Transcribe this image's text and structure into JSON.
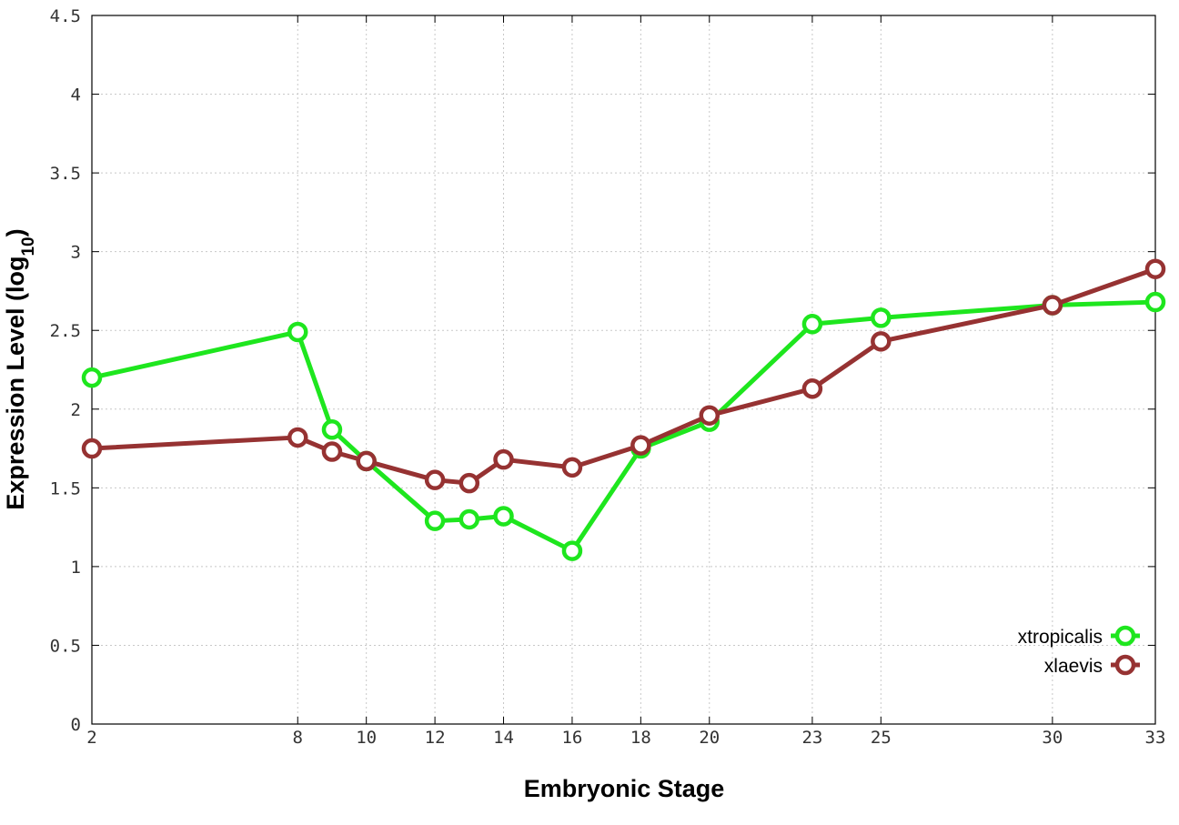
{
  "chart_data": {
    "type": "line",
    "xlabel": "Embryonic Stage",
    "ylabel_main": "Expression Level (log",
    "ylabel_sub": "10",
    "ylabel_close": ")",
    "xlim": [
      2,
      33
    ],
    "ylim": [
      0,
      4.5
    ],
    "x_ticks": [
      2,
      8,
      10,
      12,
      14,
      16,
      18,
      20,
      23,
      25,
      30,
      33
    ],
    "y_ticks": [
      0,
      0.5,
      1,
      1.5,
      2,
      2.5,
      3,
      3.5,
      4,
      4.5
    ],
    "y_tick_labels": [
      "0",
      "0.5",
      "1",
      "1.5",
      "2",
      "2.5",
      "3",
      "3.5",
      "4",
      "4.5"
    ],
    "grid": true,
    "legend_position": "bottom-right",
    "x": [
      2,
      8,
      9,
      10,
      12,
      13,
      14,
      16,
      18,
      20,
      23,
      25,
      30,
      33
    ],
    "series": [
      {
        "name": "xtropicalis",
        "color": "#1ee61e",
        "values": [
          2.2,
          2.49,
          1.87,
          1.67,
          1.29,
          1.3,
          1.32,
          1.1,
          1.75,
          1.92,
          2.54,
          2.58,
          2.66,
          2.68
        ]
      },
      {
        "name": "xlaevis",
        "color": "#963232",
        "values": [
          1.75,
          1.82,
          1.73,
          1.67,
          1.55,
          1.53,
          1.68,
          1.63,
          1.77,
          1.96,
          2.13,
          2.43,
          2.66,
          2.89
        ]
      }
    ]
  }
}
